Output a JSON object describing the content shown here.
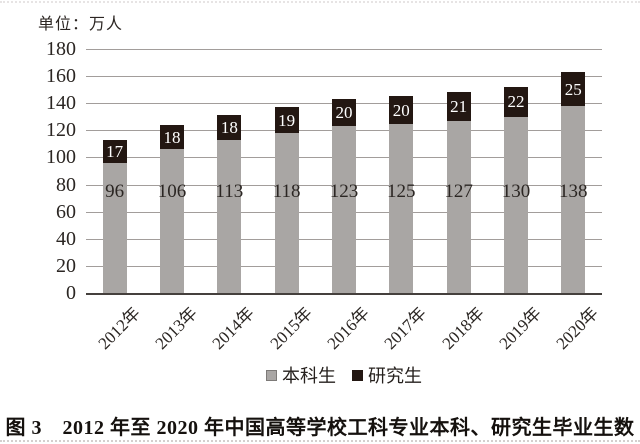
{
  "page": {
    "unit_label": "单位：万人",
    "caption": "图 3　2012 年至 2020 年中国高等学校工科专业本科、研究生毕业生数"
  },
  "chart_data": {
    "type": "bar",
    "stacked": true,
    "title": "",
    "xlabel": "",
    "ylabel": "单位：万人",
    "categories": [
      "2012年",
      "2013年",
      "2014年",
      "2015年",
      "2016年",
      "2017年",
      "2018年",
      "2019年",
      "2020年"
    ],
    "series": [
      {
        "name": "本科生",
        "color": "#a9a6a4",
        "label_color": "#2b2623",
        "values": [
          96,
          106,
          113,
          118,
          123,
          125,
          127,
          130,
          138
        ]
      },
      {
        "name": "研究生",
        "color": "#231712",
        "label_color": "#ffffff",
        "values": [
          17,
          18,
          18,
          19,
          20,
          20,
          21,
          22,
          25
        ]
      }
    ],
    "ylim": [
      0,
      180
    ],
    "ytick_step": 20,
    "yticks": [
      0,
      20,
      40,
      60,
      80,
      100,
      120,
      140,
      160,
      180
    ],
    "grid": true,
    "legend_position": "bottom"
  },
  "colors": {
    "gridline": "#a29d9b",
    "axis": "#45403d",
    "background": "#ffffff"
  }
}
